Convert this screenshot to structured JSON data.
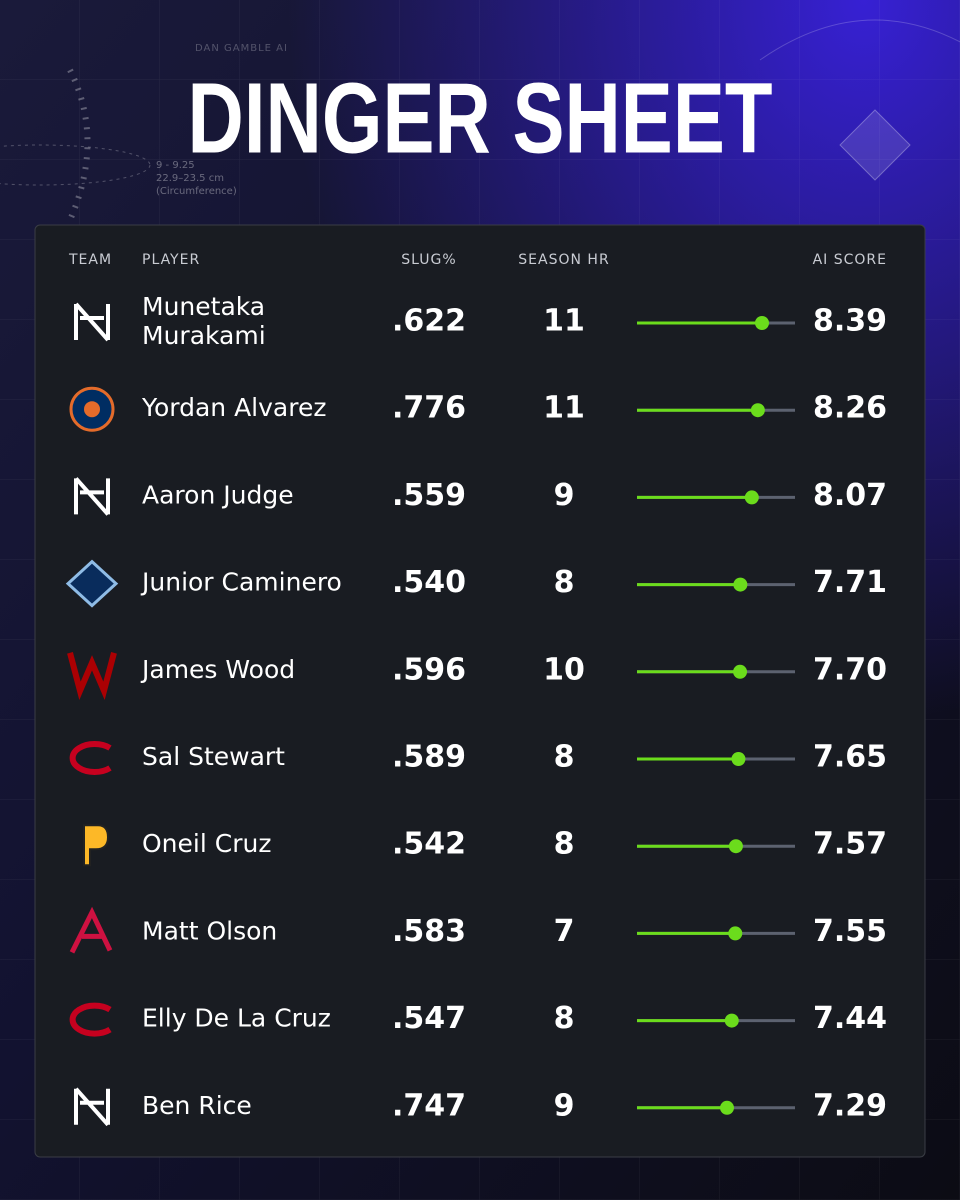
{
  "header": {
    "title": "DINGER SHEET",
    "watermark": "DAN GAMBLE AI",
    "notes": [
      "9 - 9.25",
      "22.9–23.5 cm",
      "(Circumference)"
    ]
  },
  "table": {
    "columns": [
      "TEAM",
      "PLAYER",
      "SLUG%",
      "SEASON HR",
      "AI SCORE"
    ],
    "rows": [
      {
        "player": "Munetaka Murakami",
        "slug": ".622",
        "hr": "11",
        "score": "8.39"
      },
      {
        "player": "Yordan Alvarez",
        "slug": ".776",
        "hr": "11",
        "score": "8.26"
      },
      {
        "player": "Aaron Judge",
        "slug": ".559",
        "hr": "9",
        "score": "8.07"
      },
      {
        "player": "Junior Caminero",
        "slug": ".540",
        "hr": "8",
        "score": "7.71"
      },
      {
        "player": "James Wood",
        "slug": ".596",
        "hr": "10",
        "score": "7.70"
      },
      {
        "player": "Sal Stewart",
        "slug": ".589",
        "hr": "8",
        "score": "7.65"
      },
      {
        "player": "Oneil Cruz",
        "slug": ".542",
        "hr": "8",
        "score": "7.57"
      },
      {
        "player": "Matt Olson",
        "slug": ".583",
        "hr": "7",
        "score": "7.55"
      },
      {
        "player": "Elly De La Cruz",
        "slug": ".547",
        "hr": "8",
        "score": "7.44"
      },
      {
        "player": "Ben Rice",
        "slug": ".747",
        "hr": "9",
        "score": "7.29"
      }
    ]
  }
}
